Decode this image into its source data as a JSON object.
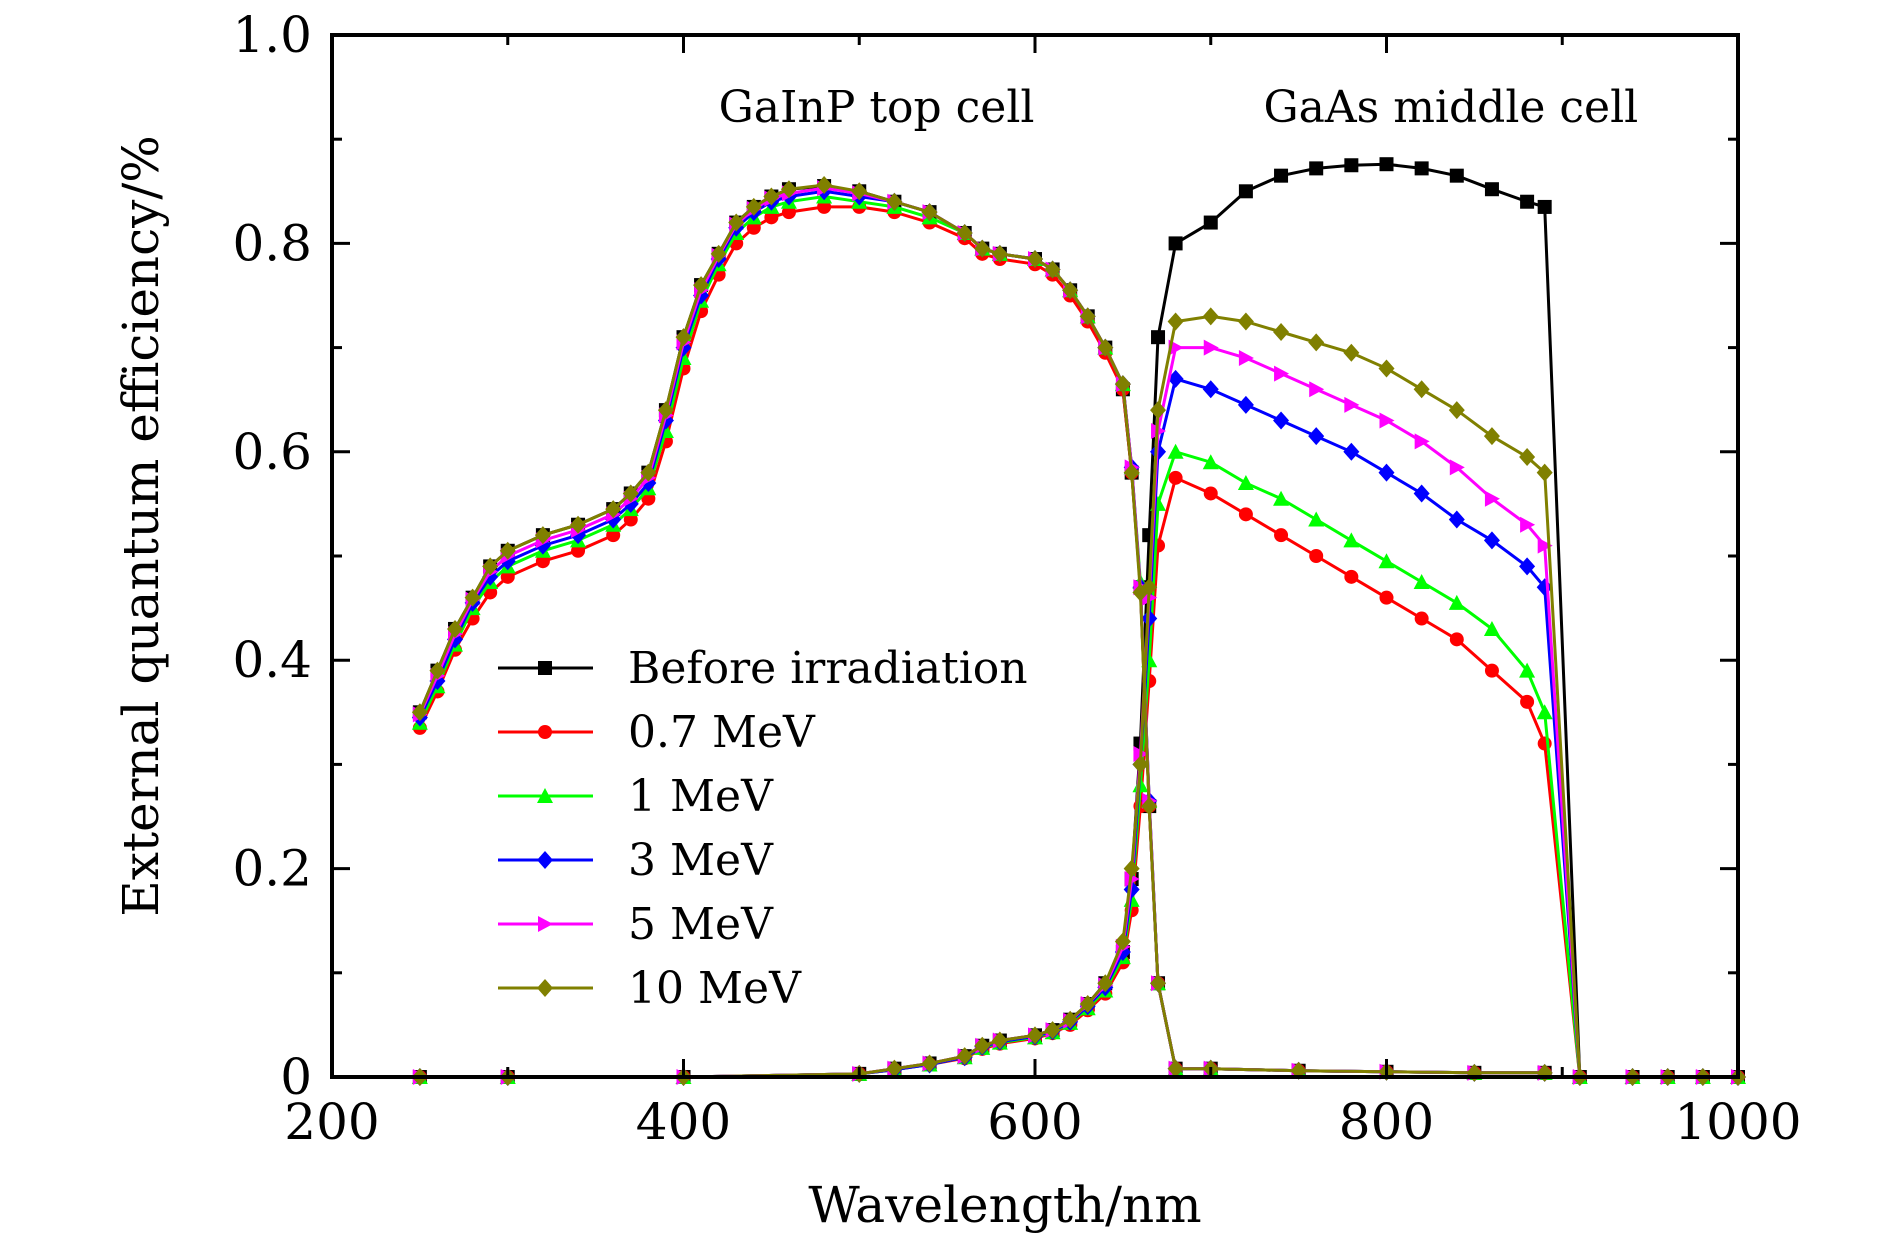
{
  "chart_data": {
    "type": "line",
    "title": "",
    "xlabel": "Wavelength/nm",
    "ylabel": "External quantum efficiency/%",
    "xlim": [
      200,
      1000
    ],
    "ylim": [
      0,
      1.0
    ],
    "xticks": [
      200,
      400,
      600,
      800,
      1000
    ],
    "xtick_labels": [
      "200",
      "400",
      "600",
      "800",
      "1000"
    ],
    "yticks": [
      0,
      0.2,
      0.4,
      0.6,
      0.8,
      1.0
    ],
    "ytick_labels": [
      "0",
      "0.2",
      "0.4",
      "0.6",
      "0.8",
      "1.0"
    ],
    "grid": false,
    "legend_position": "lower-left",
    "annotations": [
      {
        "text": "GaInP top cell",
        "x": 420,
        "y": 0.93
      },
      {
        "text": "GaAs middle cell",
        "x": 730,
        "y": 0.93
      }
    ],
    "top_cell_x": [
      250,
      260,
      270,
      280,
      290,
      300,
      320,
      340,
      360,
      370,
      380,
      390,
      400,
      410,
      420,
      430,
      440,
      450,
      460,
      480,
      500,
      520,
      540,
      560,
      570,
      580,
      600,
      610,
      620,
      630,
      640,
      650,
      655,
      660,
      665,
      670,
      680,
      700,
      750,
      800,
      850,
      890
    ],
    "middle_cell_x": [
      250,
      300,
      400,
      500,
      520,
      540,
      560,
      570,
      580,
      600,
      610,
      620,
      630,
      640,
      650,
      655,
      660,
      665,
      670,
      680,
      700,
      720,
      740,
      760,
      780,
      800,
      820,
      840,
      860,
      880,
      890,
      910,
      940,
      960,
      980,
      1000
    ],
    "series": [
      {
        "name": "Before irradiation",
        "color": "#000000",
        "marker": "square",
        "top_cell": [
          0.35,
          0.39,
          0.43,
          0.46,
          0.49,
          0.505,
          0.52,
          0.53,
          0.545,
          0.56,
          0.58,
          0.64,
          0.71,
          0.76,
          0.79,
          0.82,
          0.835,
          0.845,
          0.852,
          0.855,
          0.85,
          0.84,
          0.83,
          0.81,
          0.795,
          0.79,
          0.785,
          0.775,
          0.755,
          0.73,
          0.7,
          0.66,
          0.58,
          0.47,
          0.26,
          0.09,
          0.008,
          0.008,
          0.006,
          0.005,
          0.004,
          0.004
        ],
        "middle_cell": [
          0.0,
          0.0,
          0.0,
          0.003,
          0.008,
          0.013,
          0.02,
          0.03,
          0.035,
          0.04,
          0.045,
          0.055,
          0.07,
          0.09,
          0.12,
          0.19,
          0.32,
          0.52,
          0.71,
          0.8,
          0.82,
          0.85,
          0.865,
          0.872,
          0.875,
          0.876,
          0.872,
          0.865,
          0.852,
          0.84,
          0.835,
          0.0,
          0.0,
          0.0,
          0.0,
          0.0
        ]
      },
      {
        "name": "0.7 MeV",
        "color": "#ff0000",
        "marker": "circle",
        "top_cell": [
          0.335,
          0.37,
          0.41,
          0.44,
          0.465,
          0.48,
          0.495,
          0.505,
          0.52,
          0.535,
          0.555,
          0.61,
          0.68,
          0.735,
          0.77,
          0.8,
          0.815,
          0.825,
          0.83,
          0.835,
          0.835,
          0.83,
          0.82,
          0.805,
          0.79,
          0.785,
          0.78,
          0.77,
          0.75,
          0.725,
          0.695,
          0.66,
          0.58,
          0.47,
          0.26,
          0.09,
          0.008,
          0.008,
          0.006,
          0.005,
          0.004,
          0.004
        ],
        "middle_cell": [
          0.0,
          0.0,
          0.0,
          0.003,
          0.007,
          0.012,
          0.018,
          0.027,
          0.032,
          0.037,
          0.042,
          0.05,
          0.064,
          0.08,
          0.11,
          0.16,
          0.26,
          0.38,
          0.51,
          0.575,
          0.56,
          0.54,
          0.52,
          0.5,
          0.48,
          0.46,
          0.44,
          0.42,
          0.39,
          0.36,
          0.32,
          0.0,
          0.0,
          0.0,
          0.0,
          0.0
        ]
      },
      {
        "name": "1 MeV",
        "color": "#00ff00",
        "marker": "triangle",
        "top_cell": [
          0.34,
          0.375,
          0.415,
          0.45,
          0.475,
          0.49,
          0.505,
          0.515,
          0.53,
          0.545,
          0.565,
          0.62,
          0.69,
          0.745,
          0.78,
          0.81,
          0.825,
          0.835,
          0.84,
          0.845,
          0.84,
          0.835,
          0.825,
          0.81,
          0.795,
          0.79,
          0.785,
          0.775,
          0.755,
          0.73,
          0.7,
          0.665,
          0.585,
          0.475,
          0.265,
          0.09,
          0.008,
          0.008,
          0.006,
          0.005,
          0.004,
          0.004
        ],
        "middle_cell": [
          0.0,
          0.0,
          0.0,
          0.003,
          0.007,
          0.012,
          0.019,
          0.028,
          0.033,
          0.038,
          0.043,
          0.052,
          0.066,
          0.083,
          0.115,
          0.17,
          0.28,
          0.4,
          0.55,
          0.6,
          0.59,
          0.57,
          0.555,
          0.535,
          0.515,
          0.495,
          0.475,
          0.455,
          0.43,
          0.39,
          0.35,
          0.0,
          0.0,
          0.0,
          0.0,
          0.0
        ]
      },
      {
        "name": "3 MeV",
        "color": "#0000ff",
        "marker": "diamond",
        "top_cell": [
          0.345,
          0.38,
          0.42,
          0.455,
          0.48,
          0.495,
          0.51,
          0.52,
          0.535,
          0.55,
          0.57,
          0.63,
          0.7,
          0.75,
          0.785,
          0.815,
          0.83,
          0.84,
          0.845,
          0.85,
          0.845,
          0.84,
          0.83,
          0.81,
          0.795,
          0.79,
          0.785,
          0.775,
          0.755,
          0.73,
          0.7,
          0.665,
          0.585,
          0.47,
          0.265,
          0.09,
          0.008,
          0.008,
          0.006,
          0.005,
          0.004,
          0.004
        ],
        "middle_cell": [
          0.0,
          0.0,
          0.0,
          0.003,
          0.007,
          0.012,
          0.019,
          0.029,
          0.034,
          0.039,
          0.044,
          0.053,
          0.068,
          0.086,
          0.12,
          0.18,
          0.3,
          0.44,
          0.6,
          0.67,
          0.66,
          0.645,
          0.63,
          0.615,
          0.6,
          0.58,
          0.56,
          0.535,
          0.515,
          0.49,
          0.47,
          0.0,
          0.0,
          0.0,
          0.0,
          0.0
        ]
      },
      {
        "name": "5 MeV",
        "color": "#ff00ff",
        "marker": "triangle-right",
        "top_cell": [
          0.348,
          0.385,
          0.425,
          0.458,
          0.485,
          0.5,
          0.515,
          0.525,
          0.54,
          0.555,
          0.575,
          0.635,
          0.705,
          0.755,
          0.788,
          0.818,
          0.833,
          0.843,
          0.848,
          0.853,
          0.848,
          0.84,
          0.83,
          0.81,
          0.795,
          0.79,
          0.785,
          0.775,
          0.755,
          0.73,
          0.7,
          0.665,
          0.585,
          0.47,
          0.265,
          0.09,
          0.008,
          0.008,
          0.006,
          0.005,
          0.004,
          0.004
        ],
        "middle_cell": [
          0.0,
          0.0,
          0.0,
          0.003,
          0.008,
          0.013,
          0.02,
          0.03,
          0.035,
          0.04,
          0.045,
          0.054,
          0.07,
          0.088,
          0.125,
          0.19,
          0.31,
          0.46,
          0.62,
          0.7,
          0.7,
          0.69,
          0.675,
          0.66,
          0.645,
          0.63,
          0.61,
          0.585,
          0.555,
          0.53,
          0.51,
          0.0,
          0.0,
          0.0,
          0.0,
          0.0
        ]
      },
      {
        "name": "10 MeV",
        "color": "#808000",
        "marker": "diamond",
        "top_cell": [
          0.35,
          0.39,
          0.43,
          0.46,
          0.49,
          0.505,
          0.52,
          0.53,
          0.545,
          0.56,
          0.58,
          0.64,
          0.71,
          0.76,
          0.79,
          0.82,
          0.835,
          0.845,
          0.852,
          0.856,
          0.85,
          0.84,
          0.83,
          0.81,
          0.795,
          0.79,
          0.785,
          0.775,
          0.755,
          0.73,
          0.7,
          0.665,
          0.58,
          0.465,
          0.26,
          0.09,
          0.008,
          0.008,
          0.006,
          0.005,
          0.004,
          0.004
        ],
        "middle_cell": [
          0.0,
          0.0,
          0.0,
          0.003,
          0.008,
          0.013,
          0.02,
          0.03,
          0.035,
          0.04,
          0.045,
          0.055,
          0.07,
          0.09,
          0.13,
          0.2,
          0.3,
          0.47,
          0.64,
          0.725,
          0.73,
          0.725,
          0.715,
          0.705,
          0.695,
          0.68,
          0.66,
          0.64,
          0.615,
          0.595,
          0.58,
          0.0,
          0.0,
          0.0,
          0.0,
          0.0
        ]
      }
    ]
  }
}
